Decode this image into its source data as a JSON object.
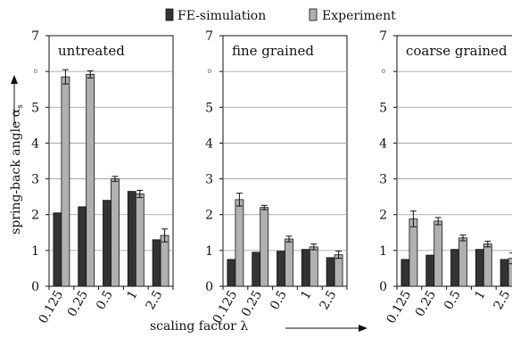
{
  "legend": {
    "items": [
      {
        "label": "FE-simulation",
        "color": "#333333"
      },
      {
        "label": "Experiment",
        "color": "#b0b0b0"
      }
    ]
  },
  "y_axis_label": "spring-back angle α",
  "y_axis_label_subscript": "s",
  "x_axis_label": "scaling factor λ",
  "chart_data": [
    {
      "type": "bar",
      "title": "untreated",
      "categories": [
        "0.125",
        "0.25",
        "0.5",
        "1",
        "2.5"
      ],
      "series": [
        {
          "name": "FE-simulation",
          "values": [
            2.05,
            2.22,
            2.4,
            2.65,
            1.3
          ]
        },
        {
          "name": "Experiment",
          "values": [
            5.85,
            5.92,
            3.0,
            2.58,
            1.42
          ],
          "errors": [
            0.2,
            0.1,
            0.07,
            0.1,
            0.18
          ]
        }
      ],
      "ylim": [
        0,
        7
      ],
      "yticks": [
        "0",
        "1",
        "2",
        "3",
        "4",
        "5",
        "◦",
        "7"
      ],
      "grid": true,
      "legend": "top"
    },
    {
      "type": "bar",
      "title": "fine grained",
      "categories": [
        "0.125",
        "0.25",
        "0.5",
        "1",
        "2.5"
      ],
      "series": [
        {
          "name": "FE-simulation",
          "values": [
            0.75,
            0.95,
            0.98,
            1.03,
            0.8
          ]
        },
        {
          "name": "Experiment",
          "values": [
            2.42,
            2.2,
            1.32,
            1.1,
            0.88
          ],
          "errors": [
            0.18,
            0.06,
            0.08,
            0.08,
            0.1
          ]
        }
      ],
      "ylim": [
        0,
        7
      ],
      "yticks": [
        "0",
        "1",
        "2",
        "3",
        "4",
        "5",
        "◦",
        "7"
      ],
      "grid": true,
      "legend": "top"
    },
    {
      "type": "bar",
      "title": "coarse grained",
      "categories": [
        "0.125",
        "0.25",
        "0.5",
        "1",
        "2.5"
      ],
      "series": [
        {
          "name": "FE-simulation",
          "values": [
            0.75,
            0.87,
            1.03,
            1.03,
            0.75
          ]
        },
        {
          "name": "Experiment",
          "values": [
            1.88,
            1.82,
            1.35,
            1.18,
            0.78
          ],
          "errors": [
            0.22,
            0.1,
            0.08,
            0.08,
            0.15
          ]
        }
      ],
      "ylim": [
        0,
        7
      ],
      "yticks": [
        "0",
        "1",
        "2",
        "3",
        "4",
        "5",
        "◦",
        "7"
      ],
      "grid": true,
      "legend": "top"
    }
  ]
}
